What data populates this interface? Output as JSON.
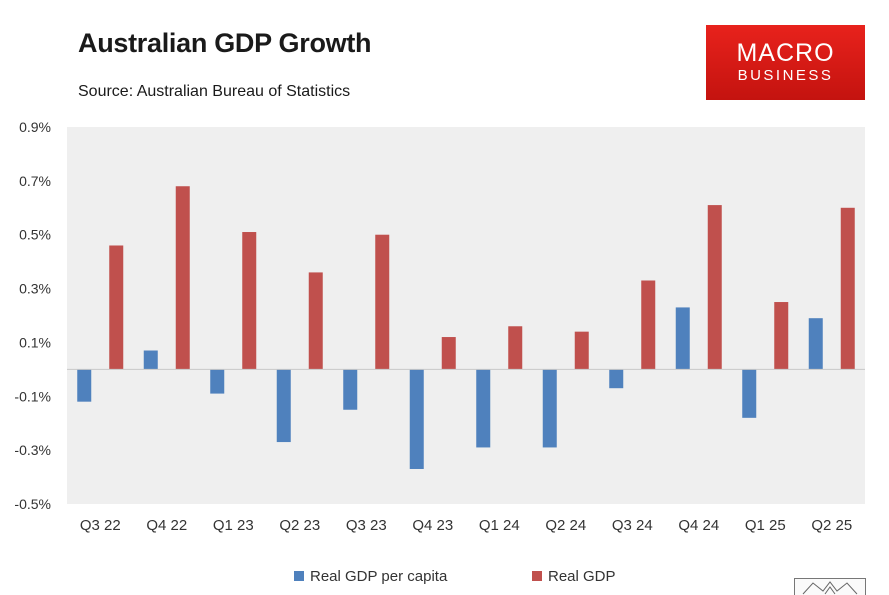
{
  "header": {
    "title": "Australian GDP Growth",
    "subtitle": "Source: Australian Bureau of Statistics"
  },
  "logo": {
    "line1": "MACRO",
    "line2": "BUSINESS",
    "color": "#e01b17"
  },
  "chart_data": {
    "type": "bar",
    "title": "Australian GDP Growth",
    "subtitle": "Source: Australian Bureau of Statistics",
    "xlabel": "",
    "ylabel": "",
    "categories": [
      "Q3 22",
      "Q4 22",
      "Q1 23",
      "Q2 23",
      "Q3 23",
      "Q4 23",
      "Q1 24",
      "Q2 24",
      "Q3 24",
      "Q4 24",
      "Q1 25",
      "Q2 25"
    ],
    "series": [
      {
        "name": "Real GDP per capita",
        "color": "#4f81bd",
        "values": [
          -0.12,
          0.07,
          -0.09,
          -0.27,
          -0.15,
          -0.37,
          -0.29,
          -0.29,
          -0.07,
          0.23,
          -0.18,
          0.19
        ]
      },
      {
        "name": "Real GDP",
        "color": "#c0504d",
        "values": [
          0.46,
          0.68,
          0.51,
          0.36,
          0.5,
          0.12,
          0.16,
          0.14,
          0.33,
          0.61,
          0.25,
          0.6
        ]
      }
    ],
    "ylim": [
      -0.5,
      0.9
    ],
    "yticks": [
      -0.5,
      -0.3,
      -0.1,
      0.1,
      0.3,
      0.5,
      0.7,
      0.9
    ],
    "ytick_labels": [
      "-0.5%",
      "-0.3%",
      "-0.1%",
      "0.1%",
      "0.3%",
      "0.5%",
      "0.7%",
      "0.9%"
    ],
    "grid": false,
    "legend_position": "bottom",
    "plot_background": "#efefef"
  }
}
